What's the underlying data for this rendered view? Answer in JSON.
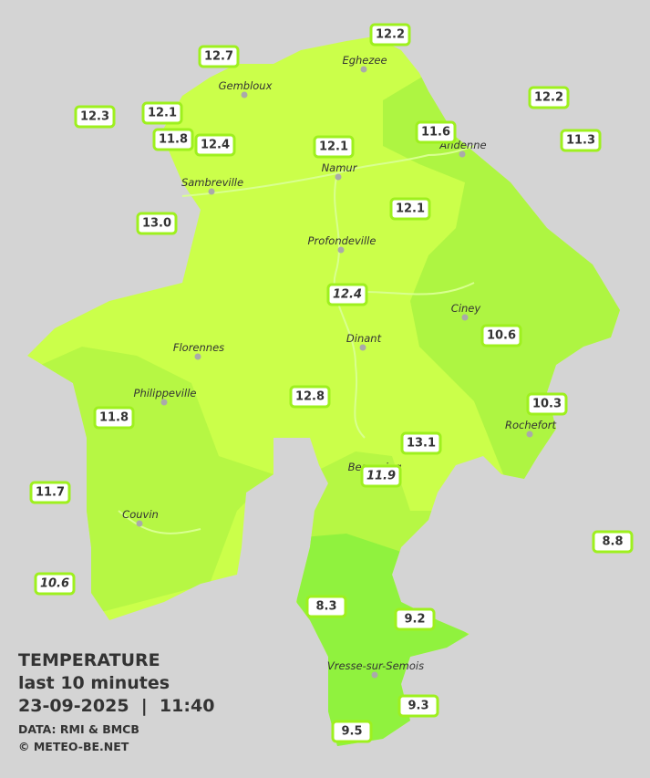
{
  "stations": [
    "12.2",
    "12.7",
    "12.3",
    "12.1",
    "11.8",
    "12.4",
    "12.1",
    "11.6",
    "12.2",
    "11.3",
    "13.0",
    "12.1",
    "12.4",
    "10.6",
    "12.8",
    "10.3",
    "11.8",
    "13.1",
    "11.9",
    "11.7",
    "8.8",
    "10.6",
    "8.3",
    "9.2",
    "9.3",
    "9.5"
  ],
  "cities": [
    "Eghezee",
    "Gembloux",
    "Andenne",
    "Namur",
    "Sambreville",
    "Profondeville",
    "Ciney",
    "Dinant",
    "Florennes",
    "Philippeville",
    "Rochefort",
    "Beauraing",
    "Couvin",
    "Vresse-sur-Semois"
  ],
  "legend": {
    "title": "TEMPERATURE",
    "period": "last 10 minutes",
    "datetime": "23-09-2025  |  11:40",
    "source": "DATA: RMI & BMCB",
    "credit": "© METEO-BE.NET"
  }
}
